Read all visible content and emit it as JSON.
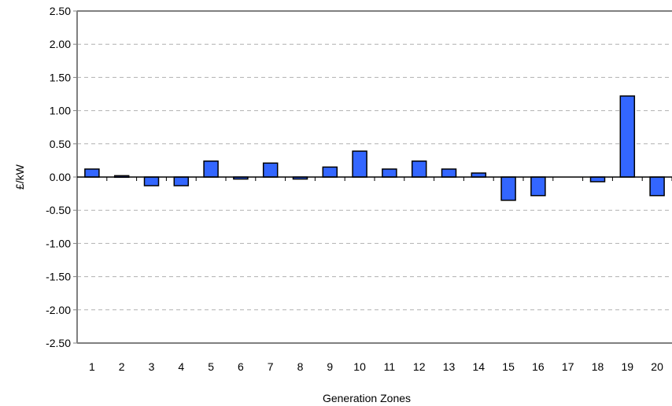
{
  "chart_data": {
    "type": "bar",
    "title": "",
    "xlabel": "Generation Zones",
    "ylabel": "£/kW",
    "ylim": [
      -2.5,
      2.5
    ],
    "ytick_step": 0.5,
    "grid": "horizontal dashed",
    "legend": "none",
    "categories": [
      "1",
      "2",
      "3",
      "4",
      "5",
      "6",
      "7",
      "8",
      "9",
      "10",
      "11",
      "12",
      "13",
      "14",
      "15",
      "16",
      "17",
      "18",
      "19",
      "20"
    ],
    "values": [
      0.12,
      0.02,
      -0.13,
      -0.13,
      0.24,
      -0.03,
      0.21,
      -0.03,
      0.15,
      0.39,
      0.12,
      0.24,
      0.12,
      0.06,
      -0.35,
      -0.28,
      0.0,
      -0.07,
      1.22,
      -0.28
    ],
    "colors": {
      "bar_fill": "#3366ff",
      "bar_stroke": "#000000",
      "grid": "#b0b0b0",
      "axis": "#808080"
    }
  }
}
